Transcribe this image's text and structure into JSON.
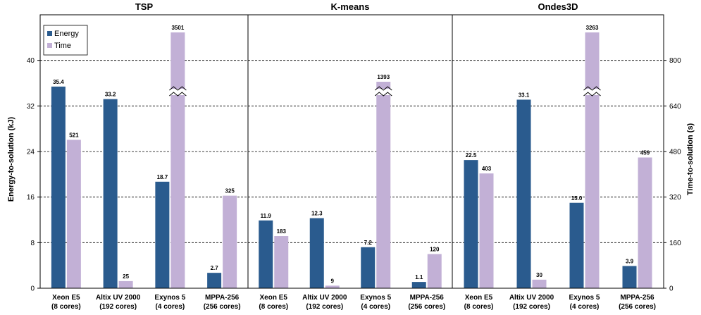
{
  "chart_data": {
    "type": "bar",
    "ylabel": "Energy-to-solution (kJ)",
    "y2label": "Time-to-solution (s)",
    "ylim": [
      0,
      48
    ],
    "y2lim": [
      0,
      960
    ],
    "yticks": [
      "0",
      "8",
      "16",
      "24",
      "32",
      "40"
    ],
    "y2ticks": [
      "0",
      "160",
      "320",
      "480",
      "640",
      "800"
    ],
    "grid": true,
    "legend_position": "top-left",
    "legend": [
      {
        "name": "Energy",
        "color": "#2a5b8e"
      },
      {
        "name": "Time",
        "color": "#c2b0d6"
      }
    ],
    "categories": [
      {
        "line1": "Xeon E5",
        "line2": "(8 cores)"
      },
      {
        "line1": "Altix UV 2000",
        "line2": "(192 cores)"
      },
      {
        "line1": "Exynos 5",
        "line2": "(4 cores)"
      },
      {
        "line1": "MPPA-256",
        "line2": "(256 cores)"
      }
    ],
    "panels": [
      {
        "title": "TSP",
        "energy": [
          35.4,
          33.2,
          18.7,
          2.7
        ],
        "energy_labels": [
          "35.4",
          "33.2",
          "18.7",
          "2.7"
        ],
        "time": [
          521,
          25,
          3501,
          325
        ],
        "time_labels": [
          "521",
          "25",
          "3501",
          "325"
        ],
        "time_broken": [
          false,
          false,
          true,
          false
        ]
      },
      {
        "title": "K-means",
        "energy": [
          11.9,
          12.3,
          7.2,
          1.1
        ],
        "energy_labels": [
          "11.9",
          "12.3",
          "7.2",
          "1.1"
        ],
        "time": [
          183,
          9,
          1393,
          120
        ],
        "time_labels": [
          "183",
          "9",
          "1393",
          "120"
        ],
        "time_broken": [
          false,
          false,
          true,
          false
        ]
      },
      {
        "title": "Ondes3D",
        "energy": [
          22.5,
          33.1,
          15.0,
          3.9
        ],
        "energy_labels": [
          "22.5",
          "33.1",
          "15.0",
          "3.9"
        ],
        "time": [
          403,
          30,
          3263,
          459
        ],
        "time_labels": [
          "403",
          "30",
          "3263",
          "459"
        ],
        "time_broken": [
          false,
          false,
          true,
          false
        ]
      }
    ]
  }
}
